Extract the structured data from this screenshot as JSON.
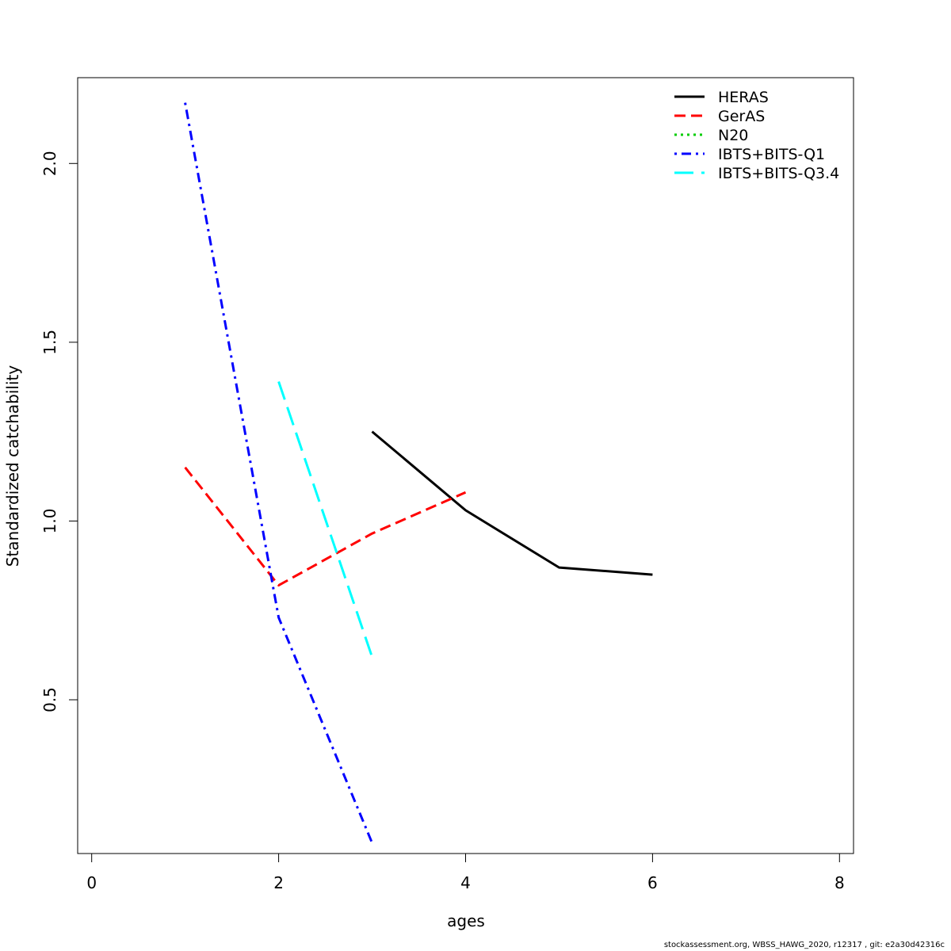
{
  "chart_data": {
    "type": "line",
    "title": "",
    "xlabel": "ages",
    "ylabel": "Standardized catchability",
    "xlim": [
      -0.15,
      8.15
    ],
    "ylim": [
      0.07,
      2.24
    ],
    "xticks": [
      0,
      2,
      4,
      6,
      8
    ],
    "yticks": [
      0.5,
      1.0,
      1.5,
      2.0
    ],
    "xtick_labels": [
      "0",
      "2",
      "4",
      "6",
      "8"
    ],
    "ytick_labels": [
      "0.5",
      "1.0",
      "1.5",
      "2.0"
    ],
    "grid": false,
    "legend_position": "top-right",
    "series": [
      {
        "name": "HERAS",
        "color": "#000000",
        "dash": "solid",
        "x": [
          3,
          4,
          5,
          6
        ],
        "y": [
          1.25,
          1.03,
          0.87,
          0.85
        ]
      },
      {
        "name": "GerAS",
        "color": "#FF0000",
        "dash": "dashed",
        "x": [
          1,
          2,
          3,
          4
        ],
        "y": [
          1.15,
          0.82,
          0.965,
          1.08
        ]
      },
      {
        "name": "N20",
        "color": "#00CD00",
        "dash": "dotted",
        "x": [],
        "y": []
      },
      {
        "name": "IBTS+BITS-Q1",
        "color": "#0000FF",
        "dash": "dotdash",
        "x": [
          1,
          2,
          3
        ],
        "y": [
          2.17,
          0.73,
          0.1
        ]
      },
      {
        "name": "IBTS+BITS-Q3.4",
        "color": "#00FFFF",
        "dash": "longdash",
        "x": [
          2,
          3
        ],
        "y": [
          1.39,
          0.62
        ]
      }
    ]
  },
  "footer": "stockassessment.org, WBSS_HAWG_2020, r12317 , git: e2a30d42316c"
}
